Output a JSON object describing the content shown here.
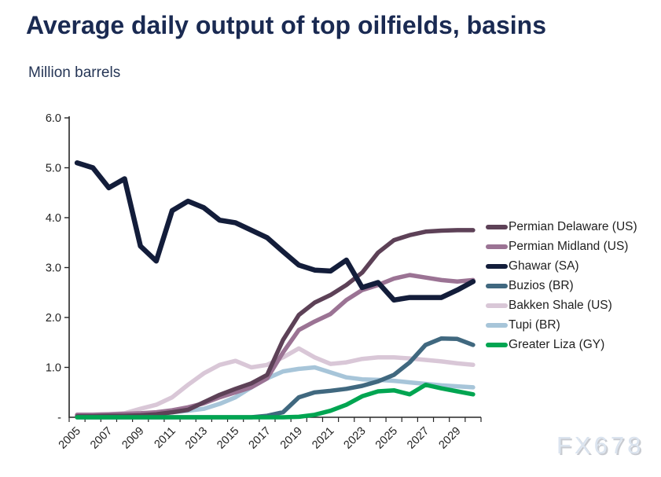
{
  "header": {
    "title": "Average daily output of top oilfields, basins",
    "subtitle": "Million barrels"
  },
  "watermark": "FX678",
  "chart_data": {
    "type": "line",
    "title": "Average daily output of top oilfields, basins",
    "ylabel": "Million barrels",
    "xlabel": "",
    "x": [
      2005,
      2006,
      2007,
      2008,
      2009,
      2010,
      2011,
      2012,
      2013,
      2014,
      2015,
      2016,
      2017,
      2018,
      2019,
      2020,
      2021,
      2022,
      2023,
      2024,
      2025,
      2026,
      2027,
      2028,
      2029,
      2030
    ],
    "x_tick_labels": [
      "2005",
      "2007",
      "2009",
      "2011",
      "2013",
      "2015",
      "2017",
      "2019",
      "2021",
      "2023",
      "2025",
      "2027",
      "2029"
    ],
    "y_tick_labels": [
      "-",
      "1.0",
      "2.0",
      "3.0",
      "4.0",
      "5.0",
      "6.0"
    ],
    "ylim": [
      0,
      6
    ],
    "grid": false,
    "legend_position": "right",
    "series": [
      {
        "name": "Permian Delaware (US)",
        "color": "#5d4157",
        "values": [
          0.02,
          0.02,
          0.03,
          0.03,
          0.04,
          0.06,
          0.1,
          0.15,
          0.3,
          0.45,
          0.57,
          0.68,
          0.85,
          1.55,
          2.05,
          2.3,
          2.45,
          2.65,
          2.9,
          3.3,
          3.55,
          3.65,
          3.72,
          3.74,
          3.75,
          3.75
        ]
      },
      {
        "name": "Permian Midland (US)",
        "color": "#9b7394",
        "values": [
          0.05,
          0.05,
          0.06,
          0.07,
          0.08,
          0.1,
          0.14,
          0.2,
          0.28,
          0.4,
          0.5,
          0.6,
          0.78,
          1.3,
          1.75,
          1.92,
          2.07,
          2.35,
          2.55,
          2.65,
          2.78,
          2.85,
          2.8,
          2.75,
          2.72,
          2.75
        ]
      },
      {
        "name": "Ghawar (SA)",
        "color": "#131d3a",
        "values": [
          5.1,
          5.0,
          4.6,
          4.78,
          3.43,
          3.13,
          4.14,
          4.33,
          4.2,
          3.95,
          3.9,
          3.75,
          3.6,
          3.32,
          3.05,
          2.95,
          2.93,
          3.15,
          2.6,
          2.7,
          2.35,
          2.4,
          2.4,
          2.4,
          2.55,
          2.72
        ]
      },
      {
        "name": "Buzios (BR)",
        "color": "#40687f",
        "values": [
          0,
          0,
          0,
          0,
          0,
          0,
          0,
          0,
          0,
          0,
          0,
          0,
          0.03,
          0.1,
          0.4,
          0.5,
          0.53,
          0.57,
          0.63,
          0.72,
          0.85,
          1.1,
          1.45,
          1.58,
          1.57,
          1.45
        ]
      },
      {
        "name": "Bakken Shale (US)",
        "color": "#d9c7d7",
        "values": [
          0.05,
          0.05,
          0.06,
          0.08,
          0.17,
          0.25,
          0.4,
          0.65,
          0.88,
          1.05,
          1.13,
          1.0,
          1.05,
          1.2,
          1.38,
          1.2,
          1.07,
          1.1,
          1.17,
          1.2,
          1.2,
          1.18,
          1.15,
          1.12,
          1.08,
          1.05
        ]
      },
      {
        "name": "Tupi (BR)",
        "color": "#a7c5d9",
        "values": [
          0.02,
          0.02,
          0.02,
          0.03,
          0.05,
          0.08,
          0.1,
          0.13,
          0.17,
          0.27,
          0.4,
          0.6,
          0.78,
          0.92,
          0.97,
          1.0,
          0.9,
          0.8,
          0.76,
          0.75,
          0.73,
          0.7,
          0.67,
          0.64,
          0.62,
          0.6
        ]
      },
      {
        "name": "Greater Liza (GY)",
        "color": "#00a551",
        "values": [
          0,
          0,
          0,
          0,
          0,
          0,
          0,
          0,
          0,
          0,
          0,
          0,
          0,
          0,
          0.01,
          0.05,
          0.13,
          0.25,
          0.42,
          0.52,
          0.54,
          0.46,
          0.65,
          0.58,
          0.52,
          0.46
        ]
      }
    ],
    "draw_order": [
      4,
      5,
      1,
      0,
      2,
      3,
      6
    ],
    "axis_color": "#262626",
    "tick_label_color": "#1f1f1f"
  }
}
